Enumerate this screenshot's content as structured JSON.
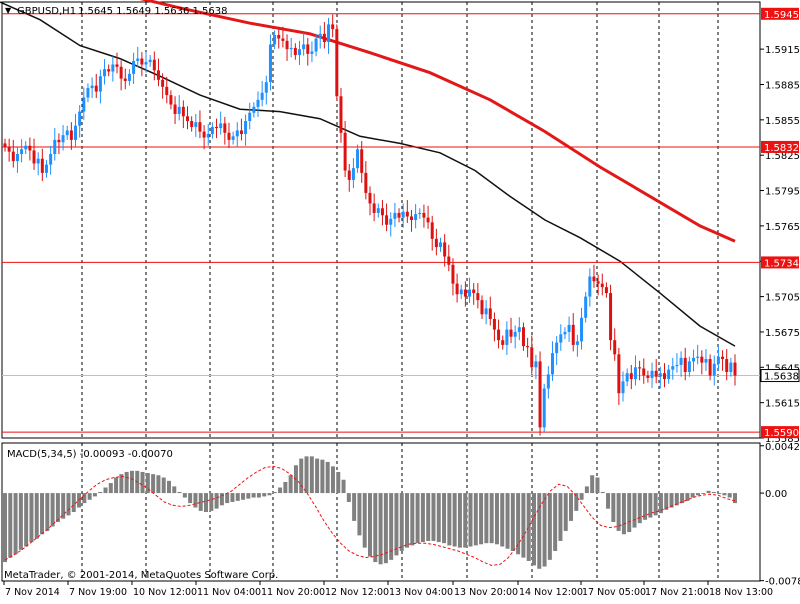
{
  "header": {
    "symbol_label": "GBPUSD,H1",
    "ohlc_label": "1.5645 1.5649 1.5636 1.5638",
    "dropdown_glyph": "▼"
  },
  "subwindow": {
    "macd_label": "MACD(5,34,5) -0.00093 -0.00070"
  },
  "footer": {
    "copyright": "MetaTrader, © 2001-2014, MetaQuotes Software Corp."
  },
  "colors": {
    "bull": "#1e90ff",
    "bear": "#dd1111",
    "level": "#ee1111",
    "ma_red": "#e21818",
    "ma_black": "#111111",
    "hist": "#808080",
    "signal": "#ee1111",
    "grid": "#000000",
    "price_tag_bg": "#ffffff"
  },
  "chart_data": [
    {
      "type": "candlestick",
      "symbol": "GBPUSD",
      "timeframe": "H1",
      "y_ticks": [
        "1.5915",
        "1.5885",
        "1.5855",
        "1.5825",
        "1.5795",
        "1.5765",
        "1.5735",
        "1.5705",
        "1.5675",
        "1.5645",
        "1.5615",
        "1.5585"
      ],
      "ylim": [
        1.5585,
        1.5955
      ],
      "x_ticks": [
        "7 Nov 2014",
        "7 Nov 19:00",
        "10 Nov 12:00",
        "11 Nov 04:00",
        "11 Nov 20:00",
        "12 Nov 12:00",
        "13 Nov 04:00",
        "13 Nov 20:00",
        "14 Nov 12:00",
        "17 Nov 05:00",
        "17 Nov 21:00",
        "18 Nov 13:00"
      ],
      "price_levels": [
        "1.5945",
        "1.5832",
        "1.5734",
        "1.5590"
      ],
      "current_price": "1.5638",
      "ma_slow_red": [
        [
          0,
          1.5978
        ],
        [
          60,
          1.597
        ],
        [
          120,
          1.5962
        ],
        [
          180,
          1.595
        ],
        [
          250,
          1.5937
        ],
        [
          310,
          1.5928
        ],
        [
          370,
          1.5912
        ],
        [
          430,
          1.5895
        ],
        [
          490,
          1.5872
        ],
        [
          545,
          1.5845
        ],
        [
          600,
          1.5815
        ],
        [
          650,
          1.579
        ],
        [
          700,
          1.5765
        ],
        [
          735,
          1.5752
        ]
      ],
      "ma_fast_black": [
        [
          0,
          1.5955
        ],
        [
          40,
          1.594
        ],
        [
          80,
          1.5918
        ],
        [
          120,
          1.5907
        ],
        [
          160,
          1.5892
        ],
        [
          200,
          1.5876
        ],
        [
          240,
          1.5864
        ],
        [
          280,
          1.5862
        ],
        [
          320,
          1.5856
        ],
        [
          360,
          1.5841
        ],
        [
          400,
          1.5835
        ],
        [
          440,
          1.5827
        ],
        [
          475,
          1.5812
        ],
        [
          510,
          1.579
        ],
        [
          545,
          1.577
        ],
        [
          580,
          1.5755
        ],
        [
          620,
          1.5735
        ],
        [
          660,
          1.5708
        ],
        [
          700,
          1.568
        ],
        [
          735,
          1.5663
        ]
      ],
      "candles_close": [
        1.5832,
        1.5828,
        1.582,
        1.5826,
        1.583,
        1.5833,
        1.5829,
        1.5818,
        1.5822,
        1.581,
        1.5817,
        1.5826,
        1.5838,
        1.5836,
        1.5842,
        1.5846,
        1.5838,
        1.585,
        1.5862,
        1.5874,
        1.5882,
        1.5884,
        1.5879,
        1.5892,
        1.5898,
        1.5896,
        1.5902,
        1.59,
        1.589,
        1.5888,
        1.5894,
        1.5905,
        1.5907,
        1.5902,
        1.5904,
        1.5906,
        1.5897,
        1.5889,
        1.5883,
        1.5876,
        1.5868,
        1.586,
        1.5866,
        1.5858,
        1.5854,
        1.5849,
        1.5853,
        1.5845,
        1.584,
        1.5843,
        1.5849,
        1.5848,
        1.5852,
        1.5844,
        1.5838,
        1.5841,
        1.5846,
        1.5843,
        1.5854,
        1.5861,
        1.5866,
        1.5872,
        1.5878,
        1.5887,
        1.5919,
        1.5927,
        1.5924,
        1.5922,
        1.5915,
        1.5916,
        1.591,
        1.5915,
        1.5919,
        1.5911,
        1.5913,
        1.5924,
        1.5928,
        1.5921,
        1.5936,
        1.5932,
        1.5875,
        1.5844,
        1.5812,
        1.5804,
        1.5814,
        1.583,
        1.581,
        1.5793,
        1.5784,
        1.5776,
        1.578,
        1.5774,
        1.5766,
        1.5771,
        1.5776,
        1.5772,
        1.5777,
        1.5773,
        1.577,
        1.5775,
        1.5776,
        1.5772,
        1.5768,
        1.5754,
        1.5747,
        1.5751,
        1.5739,
        1.5732,
        1.5716,
        1.5707,
        1.5711,
        1.5705,
        1.5711,
        1.5708,
        1.5702,
        1.569,
        1.5695,
        1.5686,
        1.5677,
        1.5668,
        1.5664,
        1.5677,
        1.5671,
        1.5675,
        1.5679,
        1.5663,
        1.5662,
        1.5645,
        1.565,
        1.5594,
        1.5627,
        1.5639,
        1.5657,
        1.5666,
        1.5673,
        1.5675,
        1.5681,
        1.5664,
        1.5667,
        1.5687,
        1.5705,
        1.5722,
        1.5718,
        1.5716,
        1.5713,
        1.5708,
        1.5668,
        1.5656,
        1.5623,
        1.5633,
        1.564,
        1.5635,
        1.5645,
        1.5644,
        1.5638,
        1.5636,
        1.5642,
        1.5637,
        1.564,
        1.5635,
        1.5643,
        1.5646,
        1.5647,
        1.5653,
        1.5641,
        1.565,
        1.5653,
        1.5654,
        1.5649,
        1.5652,
        1.5638,
        1.5648,
        1.5654,
        1.5652,
        1.5641,
        1.5649,
        1.5638
      ]
    },
    {
      "type": "bar",
      "title": "MACD(5,34,5)",
      "y_ticks": [
        "0.00425",
        "0.00",
        "-0.00787"
      ],
      "ylim": [
        -0.0079,
        0.0045
      ],
      "macd_values": [
        -0.0062,
        -0.0058,
        -0.0055,
        -0.0051,
        -0.0048,
        -0.0044,
        -0.0041,
        -0.0037,
        -0.0034,
        -0.003,
        -0.0026,
        -0.0023,
        -0.002,
        -0.0017,
        -0.0013,
        -0.0009,
        -0.0006,
        -0.0003,
        0.0001,
        0.0005,
        0.0009,
        0.0014,
        0.0017,
        0.0019,
        0.002,
        0.002,
        0.0019,
        0.0018,
        0.0017,
        0.0016,
        0.0014,
        0.0011,
        0.0006,
        0.0001,
        -0.0004,
        -0.0009,
        -0.0013,
        -0.0016,
        -0.0017,
        -0.0016,
        -0.0014,
        -0.0011,
        -0.0009,
        -0.0008,
        -0.0007,
        -0.0006,
        -0.0005,
        -0.0004,
        -0.0004,
        -0.0003,
        -0.0002,
        0.0001,
        0.0005,
        0.001,
        0.0016,
        0.0025,
        0.0031,
        0.0033,
        0.0033,
        0.0031,
        0.003,
        0.0028,
        0.0024,
        0.0019,
        0.0012,
        -0.0008,
        -0.0025,
        -0.0038,
        -0.0049,
        -0.0057,
        -0.0062,
        -0.0064,
        -0.0063,
        -0.006,
        -0.0056,
        -0.0052,
        -0.0049,
        -0.0047,
        -0.0045,
        -0.0044,
        -0.0043,
        -0.0043,
        -0.0044,
        -0.0045,
        -0.0047,
        -0.0048,
        -0.0049,
        -0.0049,
        -0.0048,
        -0.0047,
        -0.0046,
        -0.0045,
        -0.0045,
        -0.0046,
        -0.0048,
        -0.005,
        -0.0052,
        -0.0055,
        -0.0058,
        -0.0061,
        -0.0065,
        -0.0068,
        -0.0066,
        -0.006,
        -0.0052,
        -0.0043,
        -0.0034,
        -0.0025,
        -0.0016,
        -0.0006,
        0.0006,
        0.0016,
        0.0014,
        0.0001,
        -0.0014,
        -0.0026,
        -0.0034,
        -0.0037,
        -0.0035,
        -0.0031,
        -0.0027,
        -0.0024,
        -0.0022,
        -0.002,
        -0.0018,
        -0.0015,
        -0.0013,
        -0.0011,
        -0.0009,
        -0.0007,
        -0.0004,
        -0.0002,
        0.0,
        0.0002,
        0.0001,
        0.0,
        -0.0002,
        -0.0004,
        -0.0009
      ],
      "signal_values": [
        -0.006,
        -0.0056,
        -0.0051,
        -0.0045,
        -0.0039,
        -0.0033,
        -0.0026,
        -0.0019,
        -0.0012,
        -0.0005,
        0.0002,
        0.0008,
        0.0012,
        0.0014,
        0.0015,
        0.0013,
        0.0009,
        0.0004,
        -0.0002,
        -0.0008,
        -0.0011,
        -0.0012,
        -0.0011,
        -0.0009,
        -0.0007,
        -0.0005,
        -0.0002,
        0.0002,
        0.0008,
        0.0014,
        0.0019,
        0.0023,
        0.0024,
        0.0022,
        0.0017,
        0.001,
        0.0,
        -0.0012,
        -0.0025,
        -0.0036,
        -0.0045,
        -0.0052,
        -0.0056,
        -0.0058,
        -0.0057,
        -0.0055,
        -0.0052,
        -0.0049,
        -0.0046,
        -0.0045,
        -0.0045,
        -0.0046,
        -0.0048,
        -0.005,
        -0.0052,
        -0.0055,
        -0.0058,
        -0.0062,
        -0.0065,
        -0.0064,
        -0.0058,
        -0.0048,
        -0.0036,
        -0.0022,
        -0.0009,
        0.0002,
        0.0008,
        0.0006,
        -0.0002,
        -0.0012,
        -0.0022,
        -0.0029,
        -0.0031,
        -0.003,
        -0.0027,
        -0.0024,
        -0.0021,
        -0.0018,
        -0.0016,
        -0.0013,
        -0.001,
        -0.0007,
        -0.0004,
        -0.0002,
        -0.0001,
        -0.0002,
        -0.0005,
        -0.0007
      ]
    }
  ]
}
